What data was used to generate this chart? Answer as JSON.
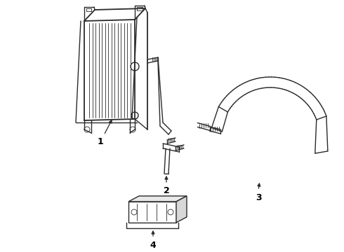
{
  "bg_color": "#ffffff",
  "line_color": "#2a2a2a",
  "lw": 1.0,
  "thin_lw": 0.6,
  "fig_w": 4.9,
  "fig_h": 3.6,
  "dpi": 100
}
